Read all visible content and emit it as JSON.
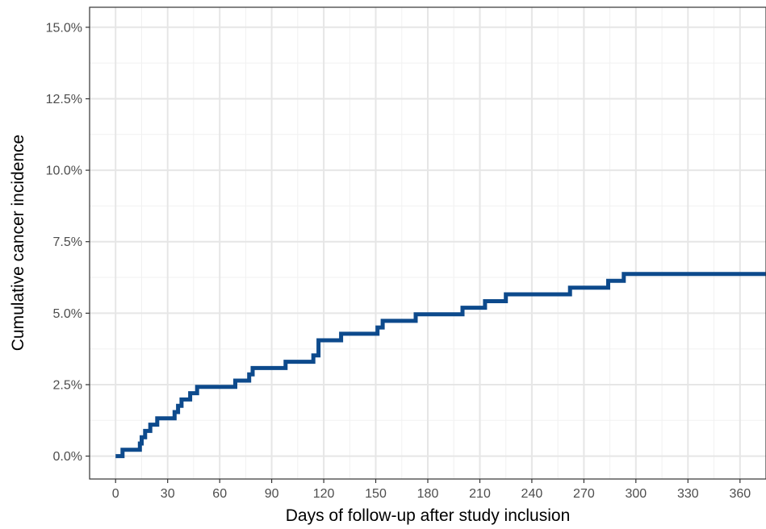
{
  "chart_data": {
    "type": "line",
    "step": true,
    "title": "",
    "xlabel": "Days of follow-up after study inclusion",
    "ylabel": "Cumulative cancer incidence",
    "xlim": [
      -15,
      375
    ],
    "ylim": [
      -0.8,
      15.7
    ],
    "y_unit": "%",
    "x_ticks": [
      0,
      30,
      60,
      90,
      120,
      150,
      180,
      210,
      240,
      270,
      300,
      330,
      360
    ],
    "x_tick_labels": [
      "0",
      "30",
      "60",
      "90",
      "120",
      "150",
      "180",
      "210",
      "240",
      "270",
      "300",
      "330",
      "360"
    ],
    "y_ticks": [
      0,
      2.5,
      5,
      7.5,
      10,
      12.5,
      15
    ],
    "y_tick_labels": [
      "0.0%",
      "2.5%",
      "5.0%",
      "7.5%",
      "10.0%",
      "12.5%",
      "15.0%"
    ],
    "grid": true,
    "theme": "bw",
    "color": "#0d4a8c",
    "series": [
      {
        "x": [
          0,
          4,
          14,
          15,
          17,
          20,
          24,
          34,
          36,
          38,
          43,
          47,
          69,
          77,
          79,
          98,
          114,
          117,
          130,
          151,
          154,
          173,
          200,
          213,
          225,
          262,
          284,
          293,
          375
        ],
        "y": [
          0,
          0.22,
          0.44,
          0.66,
          0.88,
          1.1,
          1.32,
          1.54,
          1.76,
          1.98,
          2.2,
          2.42,
          2.64,
          2.86,
          3.08,
          3.3,
          3.52,
          4.05,
          4.28,
          4.5,
          4.73,
          4.96,
          5.19,
          5.42,
          5.66,
          5.89,
          6.13,
          6.37,
          6.37
        ]
      }
    ]
  }
}
